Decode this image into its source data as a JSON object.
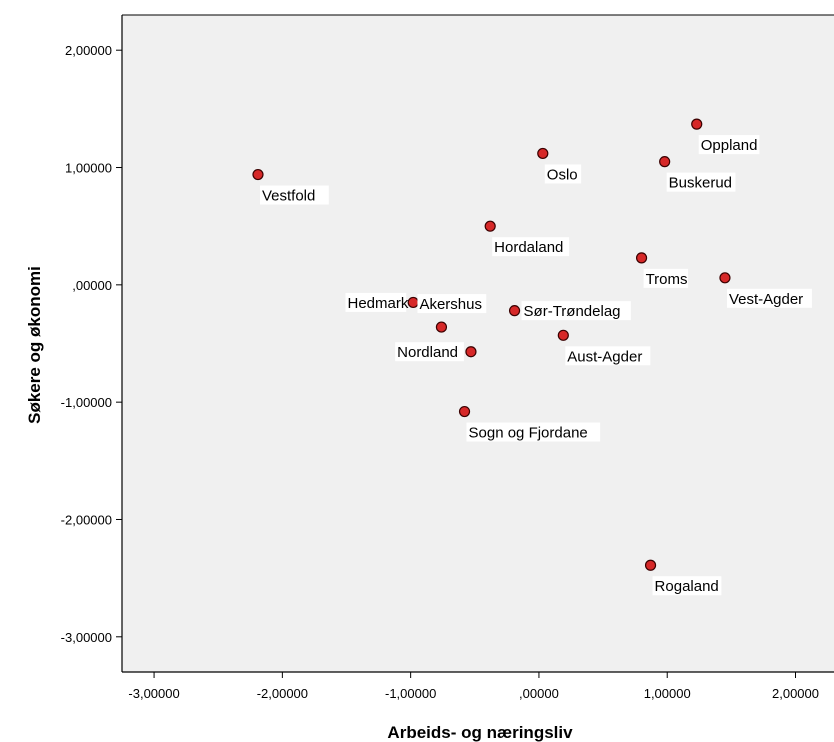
{
  "chart_data": {
    "type": "scatter",
    "xlabel": "Arbeids- og næringsliv",
    "ylabel": "Søkere og økonomi",
    "xlim": [
      -3.25,
      2.3
    ],
    "ylim": [
      -3.3,
      2.3
    ],
    "grid": false,
    "x_ticks": [
      {
        "value": -3,
        "label": "-3,00000"
      },
      {
        "value": -2,
        "label": "-2,00000"
      },
      {
        "value": -1,
        "label": "-1,00000"
      },
      {
        "value": 0,
        "label": ",00000"
      },
      {
        "value": 1,
        "label": "1,00000"
      },
      {
        "value": 2,
        "label": "2,00000"
      }
    ],
    "y_ticks": [
      {
        "value": 2,
        "label": "2,00000"
      },
      {
        "value": 1,
        "label": "1,00000"
      },
      {
        "value": 0,
        "label": ",00000"
      },
      {
        "value": -1,
        "label": "-1,00000"
      },
      {
        "value": -2,
        "label": "-2,00000"
      },
      {
        "value": -3,
        "label": "-3,00000"
      }
    ],
    "colors": {
      "plot_bg": "#f0f0f0",
      "point_fill": "#d62828",
      "point_stroke": "#3a0000",
      "frame": "#000000"
    },
    "points": [
      {
        "label": "Oppland",
        "x": 1.23,
        "y": 1.37,
        "label_pos": "below-right"
      },
      {
        "label": "Oslo",
        "x": 0.03,
        "y": 1.12,
        "label_pos": "below-right"
      },
      {
        "label": "Buskerud",
        "x": 0.98,
        "y": 1.05,
        "label_pos": "below-right"
      },
      {
        "label": "Vestfold",
        "x": -2.19,
        "y": 0.94,
        "label_pos": "below-right"
      },
      {
        "label": "Hordaland",
        "x": -0.38,
        "y": 0.5,
        "label_pos": "below-right"
      },
      {
        "label": "Troms",
        "x": 0.8,
        "y": 0.23,
        "label_pos": "below-right"
      },
      {
        "label": "Vest-Agder",
        "x": 1.45,
        "y": 0.06,
        "label_pos": "below-right"
      },
      {
        "label": "Hedmark",
        "x": -0.98,
        "y": -0.15,
        "label_pos": "left"
      },
      {
        "label": "Akershus",
        "x": -0.76,
        "y": -0.36,
        "label_pos": "above-right"
      },
      {
        "label": "Sør-Trøndelag",
        "x": -0.19,
        "y": -0.22,
        "label_pos": "right"
      },
      {
        "label": "Aust-Agder",
        "x": 0.19,
        "y": -0.43,
        "label_pos": "below-right"
      },
      {
        "label": "Nordland",
        "x": -0.53,
        "y": -0.57,
        "label_pos": "left"
      },
      {
        "label": "Sogn og Fjordane",
        "x": -0.58,
        "y": -1.08,
        "label_pos": "below-right"
      },
      {
        "label": "Rogaland",
        "x": 0.87,
        "y": -2.39,
        "label_pos": "below-right"
      }
    ]
  }
}
